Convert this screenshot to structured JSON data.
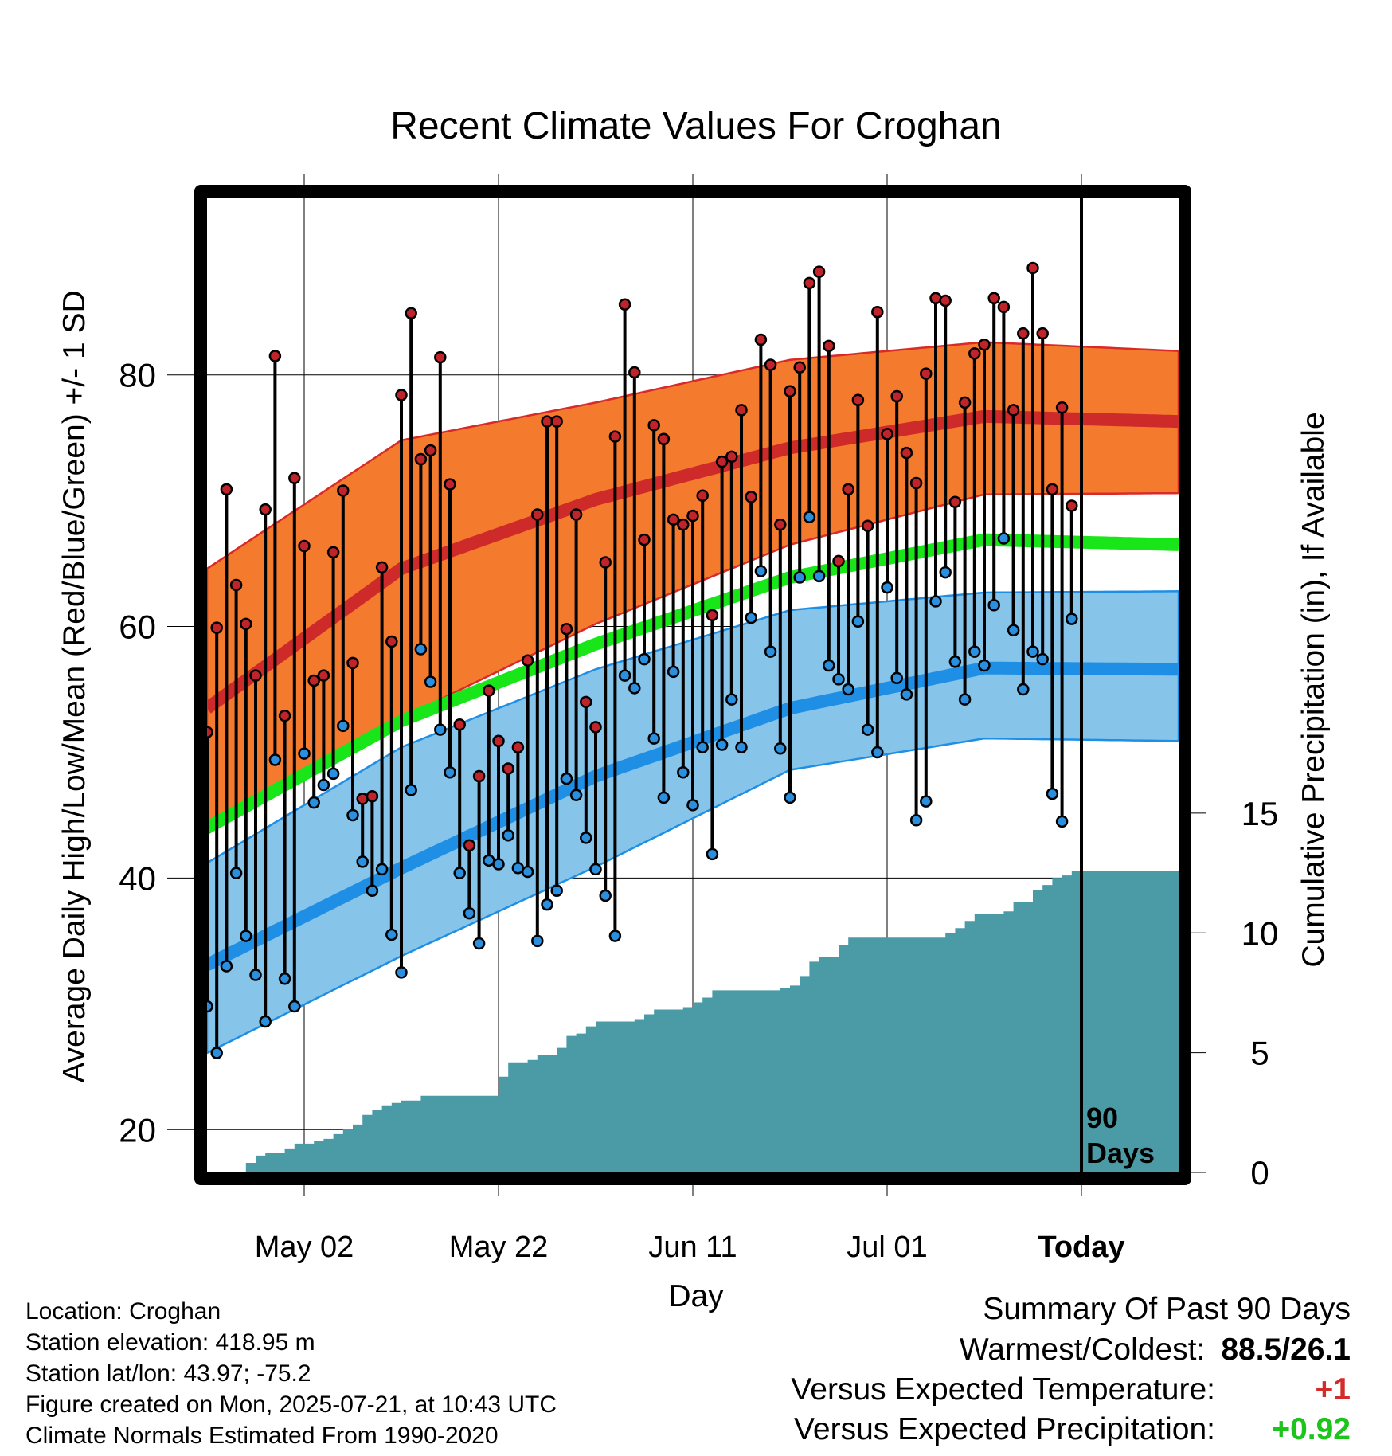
{
  "chart_data": {
    "type": "line",
    "title": "Recent Climate Values For Croghan",
    "xlabel": "Day",
    "ylabel": "Average Daily High/Low/Mean (Red/Blue/Green) +/- 1 SD",
    "y2label": "Cumulative Precipitation (in), If Available",
    "x_ticks": [
      "May 02",
      "May 22",
      "Jun 11",
      "Jul 01",
      "Today"
    ],
    "x_range": [
      "2025-04-22",
      "2025-07-31"
    ],
    "today": "2025-07-21",
    "ylim": [
      16.6,
      94.1
    ],
    "yticks": [
      20,
      40,
      60,
      80
    ],
    "y2lim": [
      0,
      40.7
    ],
    "y2ticks": [
      0,
      5,
      10,
      15
    ],
    "grid": true,
    "normals": {
      "x": [
        "2025-04-22",
        "2025-05-12",
        "2025-06-01",
        "2025-06-21",
        "2025-07-11",
        "2025-07-31"
      ],
      "high_mean": [
        53.5,
        64.6,
        70.1,
        74.2,
        76.7,
        76.3
      ],
      "high_upper": [
        64.6,
        74.8,
        77.8,
        81.2,
        82.6,
        81.9
      ],
      "high_lower": [
        43.5,
        52.7,
        60.2,
        66.5,
        70.5,
        70.6
      ],
      "avg_mean": [
        44.0,
        52.5,
        58.6,
        63.9,
        66.9,
        66.5
      ],
      "low_mean": [
        33.1,
        40.8,
        48.1,
        53.5,
        56.7,
        56.6
      ],
      "low_upper": [
        41.2,
        50.4,
        56.6,
        61.3,
        62.7,
        62.8
      ],
      "low_lower": [
        26.1,
        33.8,
        40.9,
        48.6,
        51.1,
        50.9
      ]
    },
    "series": [
      {
        "name": "High",
        "color": "#c0242a",
        "values": [
          51.6,
          59.9,
          70.9,
          63.3,
          60.2,
          56.1,
          69.3,
          81.5,
          52.9,
          71.8,
          66.4,
          55.7,
          56.1,
          65.9,
          70.8,
          57.1,
          46.3,
          46.5,
          64.7,
          58.8,
          78.4,
          84.9,
          73.3,
          74.0,
          81.4,
          71.3,
          52.2,
          42.6,
          48.1,
          54.9,
          50.9,
          48.7,
          50.4,
          57.3,
          68.9,
          76.3,
          76.3,
          59.8,
          68.9,
          54.0,
          52.0,
          65.1,
          75.1,
          85.6,
          80.2,
          66.9,
          76.0,
          74.9,
          68.5,
          68.1,
          68.8,
          70.4,
          60.9,
          73.1,
          73.5,
          77.2,
          70.3,
          82.8,
          80.8,
          68.1,
          78.7,
          80.6,
          87.3,
          88.2,
          82.3,
          65.2,
          70.9,
          78.0,
          68.0,
          85.0,
          75.3,
          78.3,
          73.8,
          71.4,
          80.1,
          86.1,
          85.9,
          69.9,
          77.8,
          81.7,
          82.4,
          86.1,
          85.4,
          77.2,
          83.3,
          88.5,
          83.3,
          70.9,
          77.4,
          69.6
        ]
      },
      {
        "name": "Low",
        "color": "#2b8fe0",
        "values": [
          29.8,
          26.1,
          33.0,
          40.4,
          35.4,
          32.3,
          28.6,
          49.4,
          32.0,
          29.8,
          49.9,
          46.0,
          47.4,
          48.3,
          52.1,
          45.0,
          41.3,
          39.0,
          40.7,
          35.5,
          32.5,
          47.0,
          58.2,
          55.6,
          51.8,
          48.4,
          40.4,
          37.2,
          34.8,
          41.4,
          41.1,
          43.4,
          40.8,
          40.5,
          35.0,
          37.9,
          39.0,
          47.9,
          46.6,
          43.2,
          40.7,
          38.6,
          35.4,
          56.1,
          55.1,
          57.4,
          51.1,
          46.4,
          56.4,
          48.4,
          45.8,
          50.4,
          41.9,
          50.6,
          54.2,
          50.4,
          60.7,
          64.4,
          58.0,
          50.3,
          46.4,
          63.9,
          68.7,
          64.0,
          56.9,
          55.8,
          55.0,
          60.4,
          51.8,
          50.0,
          63.1,
          55.9,
          54.6,
          44.6,
          46.1,
          62.0,
          64.3,
          57.2,
          54.2,
          58.0,
          56.9,
          61.7,
          67.0,
          59.7,
          55.0,
          58.0,
          57.4,
          46.7,
          44.5,
          60.6
        ]
      },
      {
        "name": "Cumulative Precipitation",
        "color": "#4a9ba6",
        "values": [
          0.0,
          0.0,
          0.0,
          0.0,
          0.4,
          0.7,
          0.8,
          0.8,
          1.0,
          1.2,
          1.2,
          1.3,
          1.4,
          1.6,
          1.8,
          2.0,
          2.4,
          2.6,
          2.8,
          2.9,
          3.0,
          3.0,
          3.2,
          3.2,
          3.2,
          3.2,
          3.2,
          3.2,
          3.2,
          3.2,
          4.0,
          4.6,
          4.6,
          4.7,
          4.9,
          4.9,
          5.2,
          5.7,
          5.8,
          6.1,
          6.3,
          6.3,
          6.3,
          6.3,
          6.4,
          6.6,
          6.8,
          6.8,
          6.8,
          6.9,
          7.1,
          7.3,
          7.6,
          7.6,
          7.6,
          7.6,
          7.6,
          7.6,
          7.6,
          7.7,
          7.8,
          8.2,
          8.8,
          9.0,
          9.0,
          9.5,
          9.8,
          9.8,
          9.8,
          9.8,
          9.8,
          9.8,
          9.8,
          9.8,
          9.8,
          9.8,
          10.0,
          10.2,
          10.5,
          10.8,
          10.8,
          10.8,
          10.9,
          11.3,
          11.3,
          11.8,
          12.0,
          12.3,
          12.4,
          12.6
        ]
      }
    ],
    "normal_colors": {
      "high_band": "#f47a2e",
      "high_line": "#cf2a2a",
      "avg_line": "#19e619",
      "low_band": "#86c4ea",
      "low_line": "#1f8fe6",
      "precip_fill": "#4a9ba6"
    },
    "annotation": [
      "90",
      "Days"
    ]
  },
  "station": {
    "location": "Location: Croghan",
    "elevation": "Station elevation: 418.95 m",
    "latlon": "Station lat/lon: 43.97; -75.2",
    "created": "Figure created on Mon, 2025-07-21, at 10:43 UTC",
    "normals": "Climate Normals Estimated From 1990-2020"
  },
  "summary": {
    "heading": "Summary Of Past 90 Days",
    "warm_label": "Warmest/Coldest:",
    "warm_value": "88.5/26.1",
    "temp_label": "Versus Expected Temperature:",
    "temp_value": "+1",
    "temp_color": "#d42a2a",
    "precip_label": "Versus Expected Precipitation:",
    "precip_value": "+0.92",
    "precip_color": "#1cc41c"
  }
}
